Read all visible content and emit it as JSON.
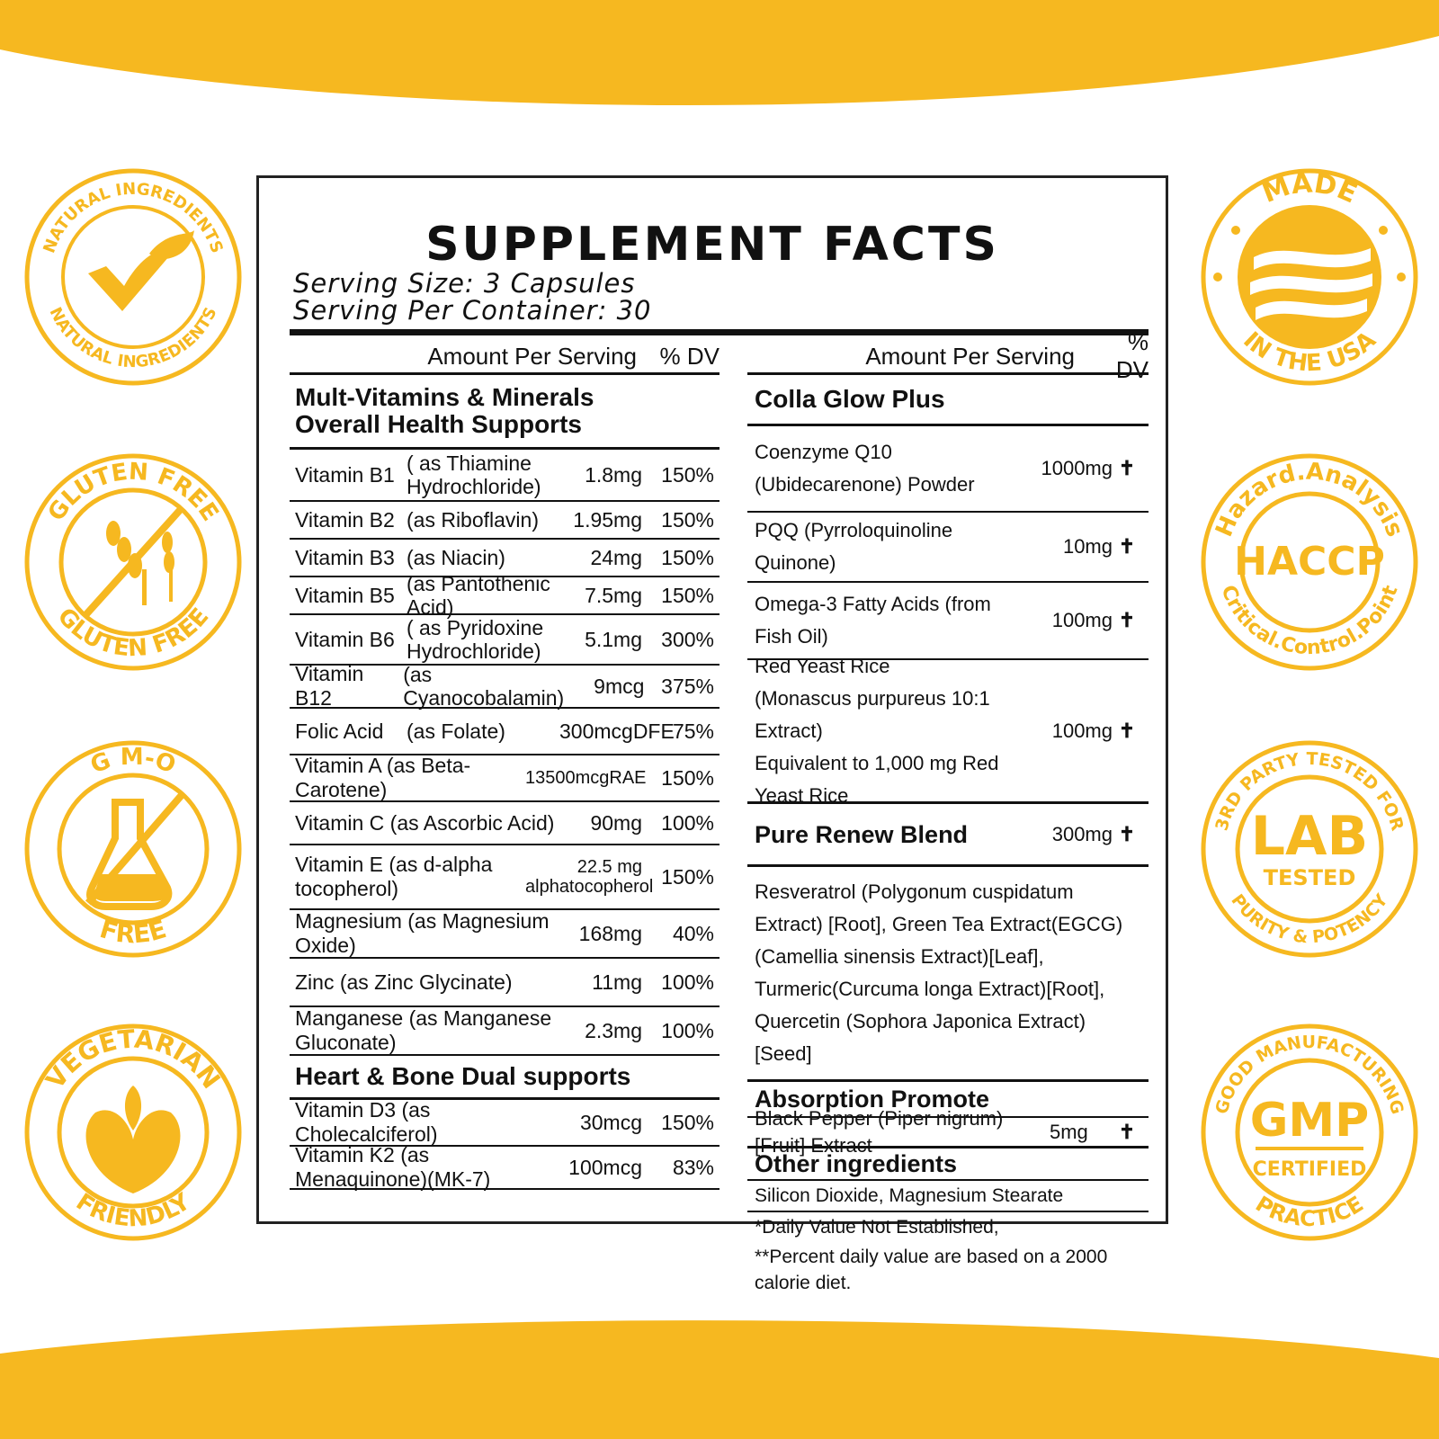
{
  "accent_color": "#f6b820",
  "title": "SUPPLEMENT FACTS",
  "serving_size": "Serving Size: 3 Capsules",
  "servings_per_container": "Serving Per Container: 30",
  "col_headers": {
    "amount": "Amount Per Serving",
    "dv": "% DV"
  },
  "left": {
    "section1_line1": "Mult-Vitamins & Minerals",
    "section1_line2": "Overall Health Supports",
    "rows": [
      {
        "name": "Vitamin B1",
        "src": "( as Thiamine Hydrochloride)",
        "amt": "1.8mg",
        "dv": "150%"
      },
      {
        "name": "Vitamin B2",
        "src": "(as Riboflavin)",
        "amt": "1.95mg",
        "dv": "150%"
      },
      {
        "name": "Vitamin B3",
        "src": "(as Niacin)",
        "amt": "24mg",
        "dv": "150%"
      },
      {
        "name": "Vitamin B5",
        "src": "(as Pantothenic Acid)",
        "amt": "7.5mg",
        "dv": "150%"
      },
      {
        "name": "Vitamin B6",
        "src": "( as Pyridoxine Hydrochloride)",
        "amt": "5.1mg",
        "dv": "300%"
      },
      {
        "name": "Vitamin B12",
        "src": "(as Cyanocobalamin)",
        "amt": "9mcg",
        "dv": "375%"
      },
      {
        "name": "Folic Acid",
        "src": "(as Folate)",
        "amt": "300mcgDFE",
        "dv": "75%"
      },
      {
        "combo": "Vitamin A (as Beta-Carotene)",
        "amt": "13500mcgRAE",
        "dv": "150%"
      },
      {
        "combo": "Vitamin C (as Ascorbic Acid)",
        "amt": "90mg",
        "dv": "100%"
      },
      {
        "combo": "Vitamin E (as d-alpha tocopherol)",
        "amt": "22.5 mg alphatocopherol",
        "dv": "150%"
      },
      {
        "combo": "Magnesium (as Magnesium Oxide)",
        "amt": "168mg",
        "dv": "40%"
      },
      {
        "combo": "Zinc  (as Zinc Glycinate)",
        "amt": "11mg",
        "dv": "100%"
      },
      {
        "combo": "Manganese  (as Manganese Gluconate)",
        "amt": "2.3mg",
        "dv": "100%"
      }
    ],
    "section2": "Heart & Bone Dual supports",
    "rows2": [
      {
        "combo": "Vitamin D3 (as Cholecalciferol)",
        "amt": "30mcg",
        "dv": "150%"
      },
      {
        "combo": "Vitamin K2  (as Menaquinone)(MK-7)",
        "amt": "100mcg",
        "dv": "83%"
      }
    ]
  },
  "right": {
    "section1": "Colla Glow Plus",
    "coq10_l1": "Coenzyme Q10",
    "coq10_l2": "(Ubidecarenone) Powder",
    "coq10_amt": "1000mg",
    "pqq": "PQQ (Pyrroloquinoline Quinone)",
    "pqq_amt": "10mg",
    "omega": "Omega-3 Fatty Acids (from Fish Oil)",
    "omega_amt": "100mg",
    "ryr_l1": "Red Yeast Rice",
    "ryr_l2": " (Monascus purpureus 10:1 Extract)",
    "ryr_l3": "Equivalent to 1,000 mg Red Yeast Rice",
    "ryr_amt": "100mg",
    "section2": "Pure Renew Blend",
    "blend_amt": "300mg",
    "blend_text": "Resveratrol (Polygonum cuspidatum Extract) [Root], Green Tea Extract(EGCG)(Camellia sinensis Extract)[Leaf], Turmeric(Curcuma longa Extract)[Root], Quercetin (Sophora Japonica Extract) [Seed]",
    "section3": "Absorption Promote",
    "pepper": "Black Pepper (Piper nigrum)[Fruit] Extract",
    "pepper_amt": "5mg",
    "section4": "Other ingredients",
    "other": "Silicon Dioxide, Magnesium Stearate",
    "foot1": "*Daily Value Not Established,",
    "foot2": "**Percent daily value are based on a 2000 calorie diet.",
    "dagger": "✝"
  },
  "badges": {
    "natural": "NATURAL INGREDIENTS",
    "natural2": "NATURAL INGREDIENTS",
    "gluten_top": "GLUTEN FREE",
    "gluten_bottom": "GLUTEN FREE",
    "gmo_top": "G M-O",
    "gmo_bottom": "FREE",
    "veg_top": "VEGETARIAN",
    "veg_bottom": "FRIENDLY",
    "made_top": "MADE",
    "made_bottom": "IN THE USA",
    "haccp_top": "Hazard.Analysis",
    "haccp_mid": "HACCP",
    "haccp_bottom": "Critical.Control.Point",
    "lab_top": "3RD PARTY TESTED FOR",
    "lab_mid": "LAB",
    "lab_mid2": "TESTED",
    "lab_bottom": "PURITY & POTENCY",
    "gmp_top": "GOOD MANUFACTURING",
    "gmp_mid": "GMP",
    "gmp_mid2": "CERTIFIED",
    "gmp_bottom": "PRACTICE"
  }
}
